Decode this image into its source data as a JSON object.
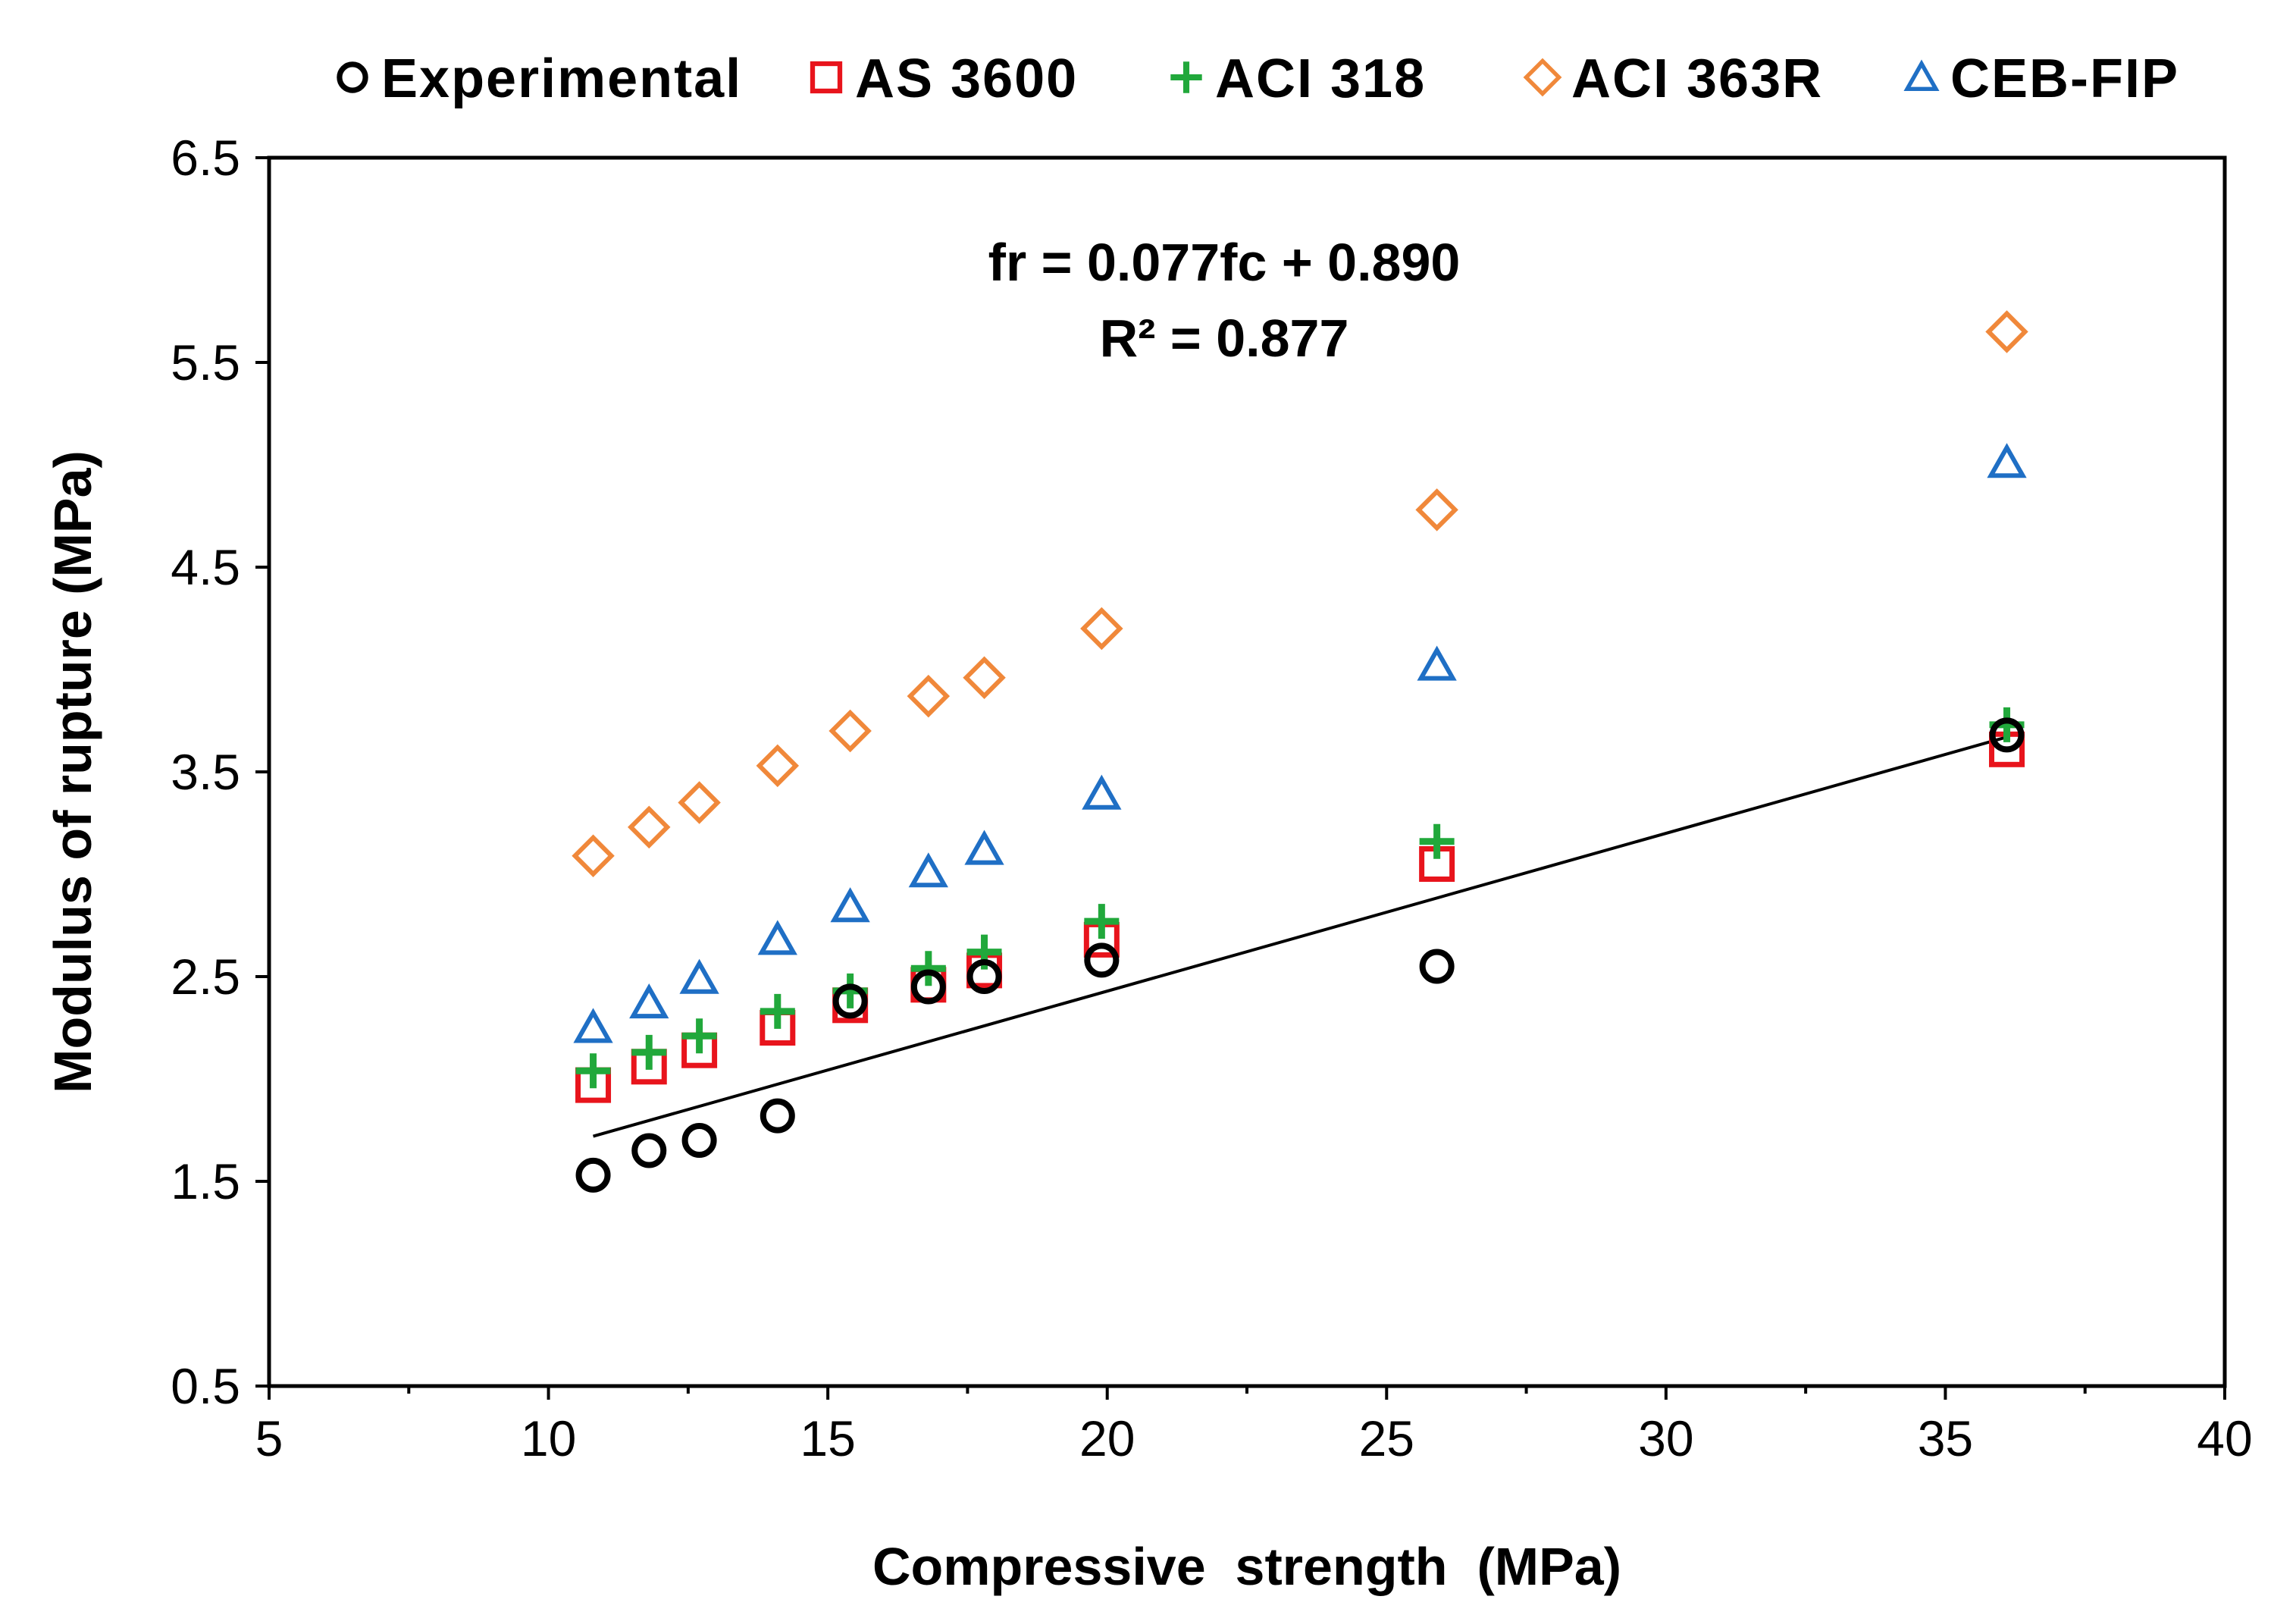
{
  "chart_data": {
    "type": "scatter",
    "title": "",
    "xlabel": "Compressive  strength  (MPa)",
    "ylabel": "Modulus of rupture (MPa)",
    "xlim": [
      5,
      40
    ],
    "ylim": [
      0.5,
      6.5
    ],
    "xticks": [
      5,
      10,
      15,
      20,
      25,
      30,
      35,
      40
    ],
    "yticks": [
      0.5,
      1.5,
      2.5,
      3.5,
      4.5,
      5.5,
      6.5
    ],
    "x_tick_labels": [
      "5",
      "10",
      "15",
      "20",
      "25",
      "30",
      "35",
      "40"
    ],
    "y_tick_labels": [
      "0.5",
      "1.5",
      "2.5",
      "3.5",
      "4.5",
      "5.5",
      "6.5"
    ],
    "legend_position": "top",
    "x": [
      10.8,
      11.8,
      12.7,
      14.1,
      15.4,
      16.8,
      17.8,
      19.9,
      25.9,
      36.1
    ],
    "series": [
      {
        "name": "Experimental",
        "marker": "circle",
        "color": "#000000",
        "values": [
          1.53,
          1.65,
          1.7,
          1.82,
          2.38,
          2.45,
          2.5,
          2.58,
          2.55,
          3.68
        ]
      },
      {
        "name": "AS 3600",
        "marker": "square",
        "color": "#e8141c",
        "values": [
          1.97,
          2.06,
          2.14,
          2.25,
          2.36,
          2.46,
          2.53,
          2.68,
          3.05,
          3.61
        ]
      },
      {
        "name": "ACI 318",
        "marker": "plus",
        "color": "#21a83b",
        "values": [
          2.04,
          2.13,
          2.21,
          2.33,
          2.43,
          2.54,
          2.62,
          2.77,
          3.16,
          3.73
        ]
      },
      {
        "name": "ACI 363R",
        "marker": "diamond",
        "color": "#f0883a",
        "values": [
          3.09,
          3.23,
          3.35,
          3.53,
          3.7,
          3.87,
          3.96,
          4.2,
          4.78,
          5.65
        ]
      },
      {
        "name": "CEB-FIP",
        "marker": "triangle",
        "color": "#1f6fc5",
        "values": [
          2.25,
          2.37,
          2.49,
          2.68,
          2.84,
          3.01,
          3.12,
          3.39,
          4.02,
          5.01
        ]
      }
    ],
    "trendline": {
      "color": "#000000",
      "x": [
        10.8,
        36.1
      ],
      "y": [
        1.72,
        3.67
      ],
      "equation": "fr = 0.077fc  + 0.890",
      "r_squared": "R² = 0.877"
    }
  }
}
